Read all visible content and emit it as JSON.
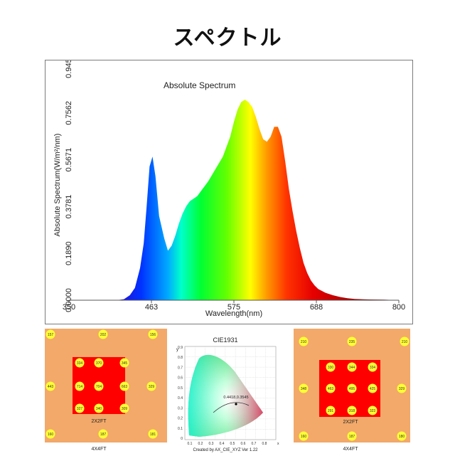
{
  "page": {
    "title": "スペクトル"
  },
  "chart_data": {
    "type": "area",
    "title": "Absolute Spectrum",
    "xlabel": "Wavelength(nm)",
    "ylabel": "Absolute Spectrum(W/m²/nm)",
    "xlim": [
      350,
      800
    ],
    "ylim": [
      0,
      0.9452
    ],
    "x_ticks": [
      "350",
      "463",
      "575",
      "688",
      "800"
    ],
    "y_ticks": [
      "0.0000",
      "0.1890",
      "0.3781",
      "0.5671",
      "0.7562",
      "0.9452"
    ],
    "series": [
      {
        "x": [
          350,
          415,
          425,
          433,
          440,
          447,
          452,
          456,
          460,
          464,
          468,
          473,
          480,
          485,
          490,
          495,
          500,
          505,
          510,
          515,
          520,
          525,
          530,
          540,
          550,
          560,
          570,
          575,
          580,
          585,
          590,
          595,
          600,
          605,
          610,
          615,
          620,
          625,
          630,
          635,
          640,
          645,
          650,
          655,
          660,
          665,
          670,
          675,
          680,
          685,
          690,
          700,
          710,
          720,
          730,
          740,
          760,
          780,
          800
        ],
        "values": [
          0,
          0,
          0.004,
          0.02,
          0.05,
          0.13,
          0.23,
          0.38,
          0.54,
          0.58,
          0.5,
          0.34,
          0.25,
          0.2,
          0.22,
          0.26,
          0.31,
          0.35,
          0.38,
          0.4,
          0.41,
          0.42,
          0.44,
          0.48,
          0.53,
          0.58,
          0.66,
          0.72,
          0.77,
          0.8,
          0.81,
          0.8,
          0.78,
          0.74,
          0.69,
          0.65,
          0.64,
          0.66,
          0.7,
          0.7,
          0.66,
          0.56,
          0.45,
          0.36,
          0.28,
          0.21,
          0.15,
          0.11,
          0.08,
          0.06,
          0.045,
          0.03,
          0.02,
          0.013,
          0.008,
          0.005,
          0.003,
          0.002,
          0
        ]
      }
    ]
  },
  "panels": {
    "left": {
      "inner_caption": "2X2FT",
      "outer_caption": "4X4FT",
      "outer_values": [
        "157",
        "202",
        "156",
        "443",
        "329",
        "160",
        "187",
        "181"
      ],
      "inner_values": [
        "334",
        "370",
        "345",
        "714",
        "704",
        "663",
        "327",
        "340",
        "309"
      ],
      "colors": {
        "outer": "#f2a96a",
        "inner": "#ff0000",
        "dot": "#ffff33"
      }
    },
    "middle": {
      "title": "CIE1931",
      "y_axis": "y",
      "x_axis": "x",
      "y_ticks": [
        "0.9",
        "0.8",
        "0.7",
        "0.6",
        "0.5",
        "0.4",
        "0.3",
        "0.2",
        "0.1",
        "0"
      ],
      "x_ticks": [
        "0.1",
        "0.2",
        "0.3",
        "0.4",
        "0.5",
        "0.6",
        "0.7",
        "0.8"
      ],
      "point_label": "0.4418,0.3545",
      "footer": "Created by AX_CIE_XYZ Ver 1.22"
    },
    "right": {
      "inner_caption": "2X2FT",
      "outer_caption": "4X4FT",
      "outer_values": [
        "210",
        "235",
        "210",
        "348",
        "329",
        "160",
        "187",
        "180"
      ],
      "inner_values": [
        "330",
        "344",
        "334",
        "463",
        "495",
        "425",
        "291",
        "318",
        "323"
      ],
      "colors": {
        "outer": "#f2a96a",
        "inner": "#ff0000",
        "dot": "#ffff33"
      }
    }
  }
}
